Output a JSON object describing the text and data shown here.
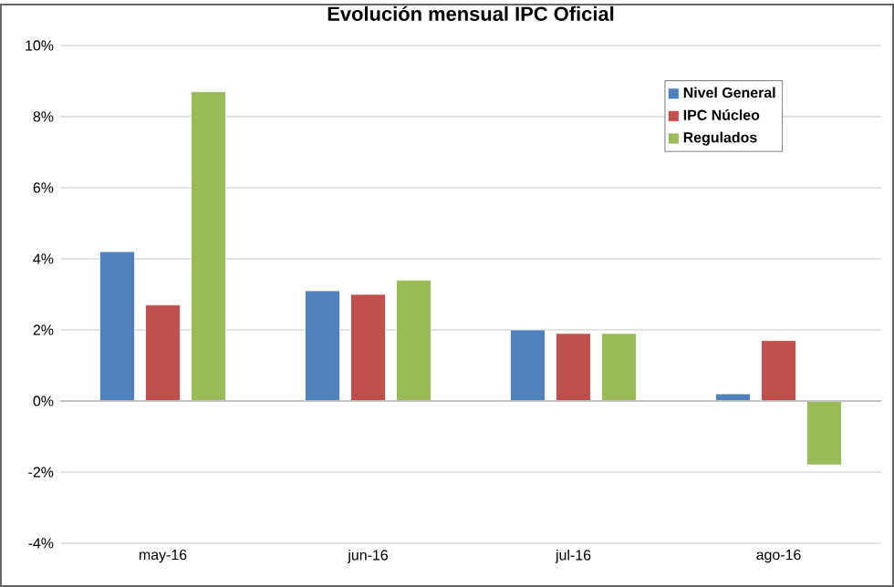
{
  "chart_data": {
    "type": "bar",
    "title": "Evolución mensual IPC Oficial",
    "categories": [
      "may-16",
      "jun-16",
      "jul-16",
      "ago-16"
    ],
    "series": [
      {
        "name": "Nivel General",
        "color": "#4f81bd",
        "values": [
          4.2,
          3.1,
          2.0,
          0.2
        ]
      },
      {
        "name": "IPC Núcleo",
        "color": "#c0504d",
        "values": [
          2.7,
          3.0,
          1.9,
          1.7
        ]
      },
      {
        "name": "Regulados",
        "color": "#9bbb59",
        "values": [
          8.7,
          3.4,
          1.9,
          -1.8
        ]
      }
    ],
    "ylim": [
      -4,
      10
    ],
    "yticks": [
      {
        "value": -4,
        "label": "-4%"
      },
      {
        "value": -2,
        "label": "-2%"
      },
      {
        "value": 0,
        "label": "0%"
      },
      {
        "value": 2,
        "label": "2%"
      },
      {
        "value": 4,
        "label": "4%"
      },
      {
        "value": 6,
        "label": "6%"
      },
      {
        "value": 8,
        "label": "8%"
      },
      {
        "value": 10,
        "label": "10%"
      }
    ],
    "grid": "y",
    "legend": "top right"
  }
}
